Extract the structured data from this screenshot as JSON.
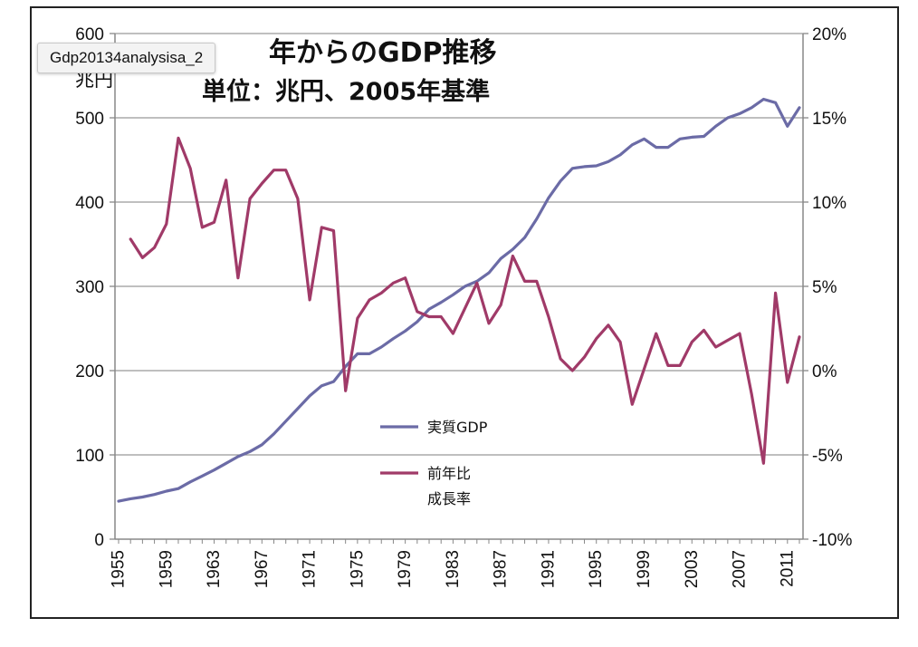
{
  "tooltip": "Gdp20134analysisa_2",
  "chart_data": {
    "type": "line",
    "title": "年からのGDP推移",
    "subtitle": "単位：兆円、2005年基準",
    "left_axis": {
      "unit_label": "兆円",
      "ticks": [
        "0",
        "100",
        "200",
        "300",
        "400",
        "500",
        "600"
      ],
      "ylim": [
        0,
        600
      ]
    },
    "right_axis": {
      "ticks": [
        "-10%",
        "-5%",
        "0%",
        "5%",
        "10%",
        "15%",
        "20%"
      ],
      "ylim": [
        -10,
        20
      ]
    },
    "x_tick_labels": [
      "1955",
      "1959",
      "1963",
      "1967",
      "1971",
      "1975",
      "1979",
      "1983",
      "1987",
      "1991",
      "1995",
      "1999",
      "2003",
      "2007",
      "2011"
    ],
    "x": [
      1955,
      1956,
      1957,
      1958,
      1959,
      1960,
      1961,
      1962,
      1963,
      1964,
      1965,
      1966,
      1967,
      1968,
      1969,
      1970,
      1971,
      1972,
      1973,
      1974,
      1975,
      1976,
      1977,
      1978,
      1979,
      1980,
      1981,
      1982,
      1983,
      1984,
      1985,
      1986,
      1987,
      1988,
      1989,
      1990,
      1991,
      1992,
      1993,
      1994,
      1995,
      1996,
      1997,
      1998,
      1999,
      2000,
      2001,
      2002,
      2003,
      2004,
      2005,
      2006,
      2007,
      2008,
      2009,
      2010,
      2011,
      2012
    ],
    "grid": "horizontal",
    "legend_position": "center",
    "series": [
      {
        "name": "実質GDP",
        "axis": "left",
        "color": "#6b6ba6",
        "values": [
          45,
          48,
          50,
          53,
          57,
          60,
          68,
          75,
          82,
          90,
          98,
          104,
          112,
          125,
          140,
          155,
          170,
          182,
          187,
          205,
          220,
          220,
          228,
          238,
          247,
          258,
          273,
          281,
          290,
          300,
          306,
          316,
          333,
          344,
          358,
          380,
          405,
          425,
          440,
          442,
          443,
          448,
          456,
          468,
          475,
          465,
          465,
          475,
          477,
          478,
          490,
          500,
          505,
          512,
          522,
          518,
          490,
          512
        ]
      },
      {
        "name": "前年比\n成長率",
        "axis": "right",
        "color": "#a03a68",
        "values": [
          null,
          7.8,
          6.7,
          7.3,
          8.7,
          13.8,
          12,
          8.5,
          8.8,
          11.3,
          5.5,
          10.2,
          11.1,
          11.9,
          11.9,
          10.2,
          4.2,
          8.5,
          8.3,
          -1.2,
          3.1,
          4.2,
          4.6,
          5.2,
          5.5,
          3.5,
          3.2,
          3.2,
          2.2,
          3.7,
          5.2,
          2.8,
          3.9,
          6.8,
          5.3,
          5.3,
          3.2,
          0.7,
          0,
          0.8,
          1.9,
          2.7,
          1.7,
          -2,
          0.1,
          2.2,
          0.3,
          0.3,
          1.7,
          2.4,
          1.4,
          1.8,
          2.2,
          -1.4,
          -5.5,
          4.6,
          -0.7,
          2
        ]
      }
    ]
  }
}
